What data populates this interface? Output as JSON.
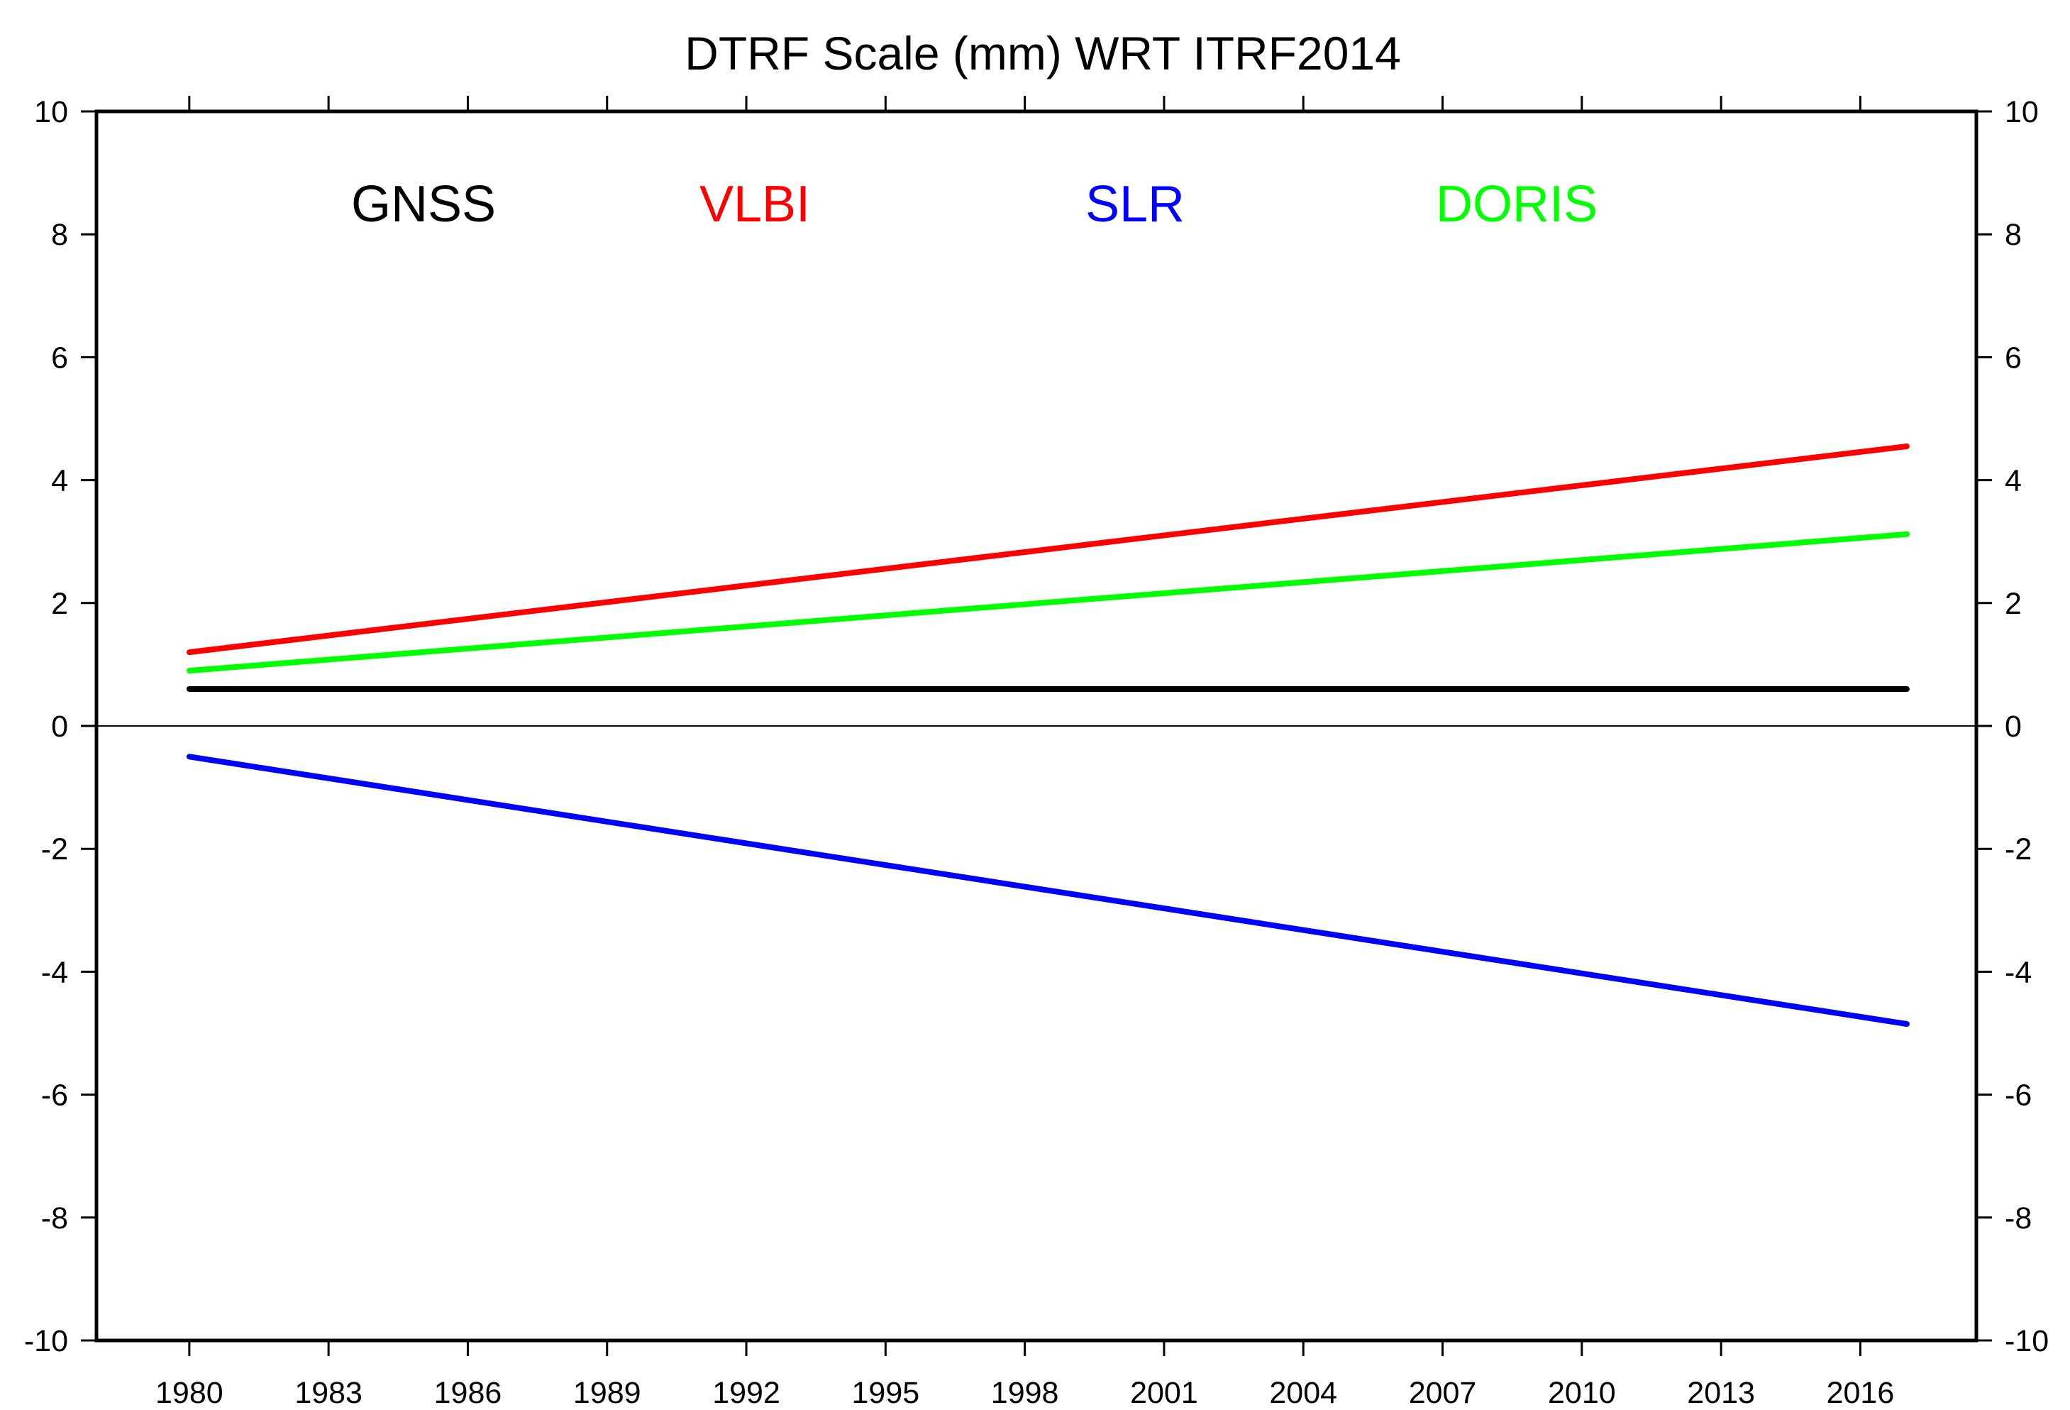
{
  "chart_data": {
    "type": "line",
    "title": "DTRF Scale (mm) WRT ITRF2014",
    "xlabel": "",
    "ylabel": "",
    "xlim": [
      1978,
      2018.5
    ],
    "ylim": [
      -10,
      10
    ],
    "x_ticks": [
      "1980",
      "1983",
      "1986",
      "1989",
      "1992",
      "1995",
      "1998",
      "2001",
      "2004",
      "2007",
      "2010",
      "2013",
      "2016"
    ],
    "y_ticks": [
      "10",
      "8",
      "6",
      "4",
      "2",
      "0",
      "-2",
      "-4",
      "-6",
      "-8",
      "-10"
    ],
    "grid": false,
    "zero_line": true,
    "legend_position": "top",
    "series": [
      {
        "name": "GNSS",
        "color": "#000000",
        "x": [
          1980,
          2017
        ],
        "values": [
          0.6,
          0.6
        ]
      },
      {
        "name": "VLBI",
        "color": "#ff0000",
        "x": [
          1980,
          2017
        ],
        "values": [
          1.2,
          4.55
        ]
      },
      {
        "name": "SLR",
        "color": "#0000ff",
        "x": [
          1980,
          2017
        ],
        "values": [
          -0.5,
          -4.85
        ]
      },
      {
        "name": "DORIS",
        "color": "#00ff00",
        "x": [
          1980,
          2017
        ],
        "values": [
          0.9,
          3.12
        ]
      }
    ]
  }
}
